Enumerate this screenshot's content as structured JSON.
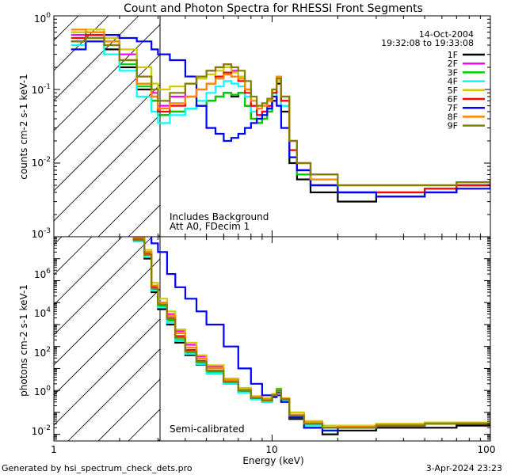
{
  "chart_data": [
    {
      "type": "line",
      "title": "Count and Photon Spectra for RHESSI Front Segments",
      "panel": "top",
      "xlabel": "",
      "ylabel": "counts cm-2 s-1 keV-1",
      "xscale": "log",
      "yscale": "log",
      "xlim": [
        1,
        100
      ],
      "ylim": [
        0.001,
        1
      ],
      "y_ticks": [
        {
          "base": "10",
          "exp": "0",
          "value": 1
        },
        {
          "base": "10",
          "exp": "-1",
          "value": 0.1
        },
        {
          "base": "10",
          "exp": "-2",
          "value": 0.01
        },
        {
          "base": "10",
          "exp": "-3",
          "value": 0.001
        }
      ],
      "date": "14-Oct-2004",
      "time_range": "19:32:08 to 19:33:08",
      "annotations": [
        "Includes Background",
        "Att A0, FDecim 1"
      ],
      "legend_location": "top-right",
      "x": [
        1.2,
        1.4,
        1.7,
        2.0,
        2.4,
        2.8,
        3.0,
        3.4,
        4.0,
        4.5,
        5.0,
        5.5,
        6.0,
        6.5,
        7.0,
        7.5,
        8.0,
        8.5,
        9.0,
        9.5,
        10.0,
        10.5,
        11.0,
        12.0,
        13.0,
        15.0,
        20.0,
        30.0,
        50.0,
        70.0,
        100.0
      ],
      "series": [
        {
          "name": "1F",
          "color": "#000000",
          "values": [
            0.45,
            0.5,
            0.35,
            0.2,
            0.1,
            0.07,
            0.045,
            0.05,
            0.055,
            0.06,
            0.07,
            0.08,
            0.09,
            0.08,
            0.09,
            0.06,
            0.04,
            0.035,
            0.04,
            0.05,
            0.07,
            0.12,
            0.05,
            0.01,
            0.006,
            0.004,
            0.003,
            0.0035,
            0.004,
            0.005,
            0.006
          ]
        },
        {
          "name": "2F",
          "color": "#ff00ff",
          "values": [
            0.55,
            0.6,
            0.5,
            0.3,
            0.15,
            0.09,
            0.06,
            0.08,
            0.12,
            0.15,
            0.18,
            0.2,
            0.22,
            0.18,
            0.15,
            0.1,
            0.06,
            0.045,
            0.05,
            0.06,
            0.09,
            0.14,
            0.07,
            0.02,
            0.01,
            0.006,
            0.004,
            0.004,
            0.0045,
            0.005,
            0.006
          ]
        },
        {
          "name": "3F",
          "color": "#00cc00",
          "values": [
            0.6,
            0.55,
            0.4,
            0.22,
            0.11,
            0.07,
            0.045,
            0.05,
            0.055,
            0.06,
            0.07,
            0.08,
            0.09,
            0.085,
            0.09,
            0.06,
            0.04,
            0.035,
            0.04,
            0.05,
            0.08,
            0.14,
            0.06,
            0.012,
            0.007,
            0.005,
            0.004,
            0.004,
            0.0045,
            0.005,
            0.006
          ]
        },
        {
          "name": "4F",
          "color": "#00ffff",
          "values": [
            0.4,
            0.45,
            0.3,
            0.18,
            0.08,
            0.05,
            0.035,
            0.045,
            0.055,
            0.07,
            0.09,
            0.11,
            0.13,
            0.12,
            0.11,
            0.08,
            0.05,
            0.04,
            0.045,
            0.055,
            0.08,
            0.13,
            0.06,
            0.015,
            0.008,
            0.005,
            0.004,
            0.004,
            0.0045,
            0.005,
            0.006
          ]
        },
        {
          "name": "5F",
          "color": "#cccc00",
          "values": [
            0.6,
            0.65,
            0.5,
            0.35,
            0.2,
            0.12,
            0.1,
            0.11,
            0.12,
            0.14,
            0.16,
            0.18,
            0.2,
            0.17,
            0.15,
            0.1,
            0.07,
            0.055,
            0.06,
            0.07,
            0.1,
            0.13,
            0.08,
            0.02,
            0.01,
            0.007,
            0.005,
            0.005,
            0.005,
            0.0055,
            0.006
          ]
        },
        {
          "name": "6F",
          "color": "#ff0000",
          "values": [
            0.5,
            0.55,
            0.45,
            0.25,
            0.12,
            0.08,
            0.05,
            0.06,
            0.08,
            0.1,
            0.12,
            0.15,
            0.17,
            0.15,
            0.13,
            0.09,
            0.06,
            0.045,
            0.05,
            0.06,
            0.09,
            0.14,
            0.07,
            0.015,
            0.008,
            0.005,
            0.004,
            0.004,
            0.0045,
            0.005,
            0.006
          ]
        },
        {
          "name": "7F",
          "color": "#0000ff",
          "values": [
            0.35,
            0.45,
            0.55,
            0.5,
            0.45,
            0.35,
            0.3,
            0.25,
            0.15,
            0.06,
            0.03,
            0.025,
            0.02,
            0.022,
            0.025,
            0.03,
            0.035,
            0.04,
            0.045,
            0.055,
            0.08,
            0.06,
            0.03,
            0.012,
            0.008,
            0.005,
            0.004,
            0.0035,
            0.004,
            0.0045,
            0.005
          ]
        },
        {
          "name": "8F",
          "color": "#ff8800",
          "values": [
            0.65,
            0.6,
            0.45,
            0.25,
            0.12,
            0.08,
            0.055,
            0.065,
            0.08,
            0.1,
            0.12,
            0.14,
            0.16,
            0.15,
            0.14,
            0.1,
            0.07,
            0.055,
            0.06,
            0.07,
            0.1,
            0.15,
            0.08,
            0.02,
            0.01,
            0.006,
            0.005,
            0.005,
            0.005,
            0.0055,
            0.006
          ]
        },
        {
          "name": "9F",
          "color": "#808000",
          "values": [
            0.45,
            0.5,
            0.4,
            0.25,
            0.15,
            0.1,
            0.07,
            0.09,
            0.12,
            0.15,
            0.18,
            0.2,
            0.22,
            0.2,
            0.18,
            0.13,
            0.08,
            0.06,
            0.065,
            0.075,
            0.1,
            0.14,
            0.08,
            0.02,
            0.01,
            0.007,
            0.005,
            0.005,
            0.005,
            0.0055,
            0.006
          ]
        }
      ]
    },
    {
      "type": "line",
      "panel": "bottom",
      "xlabel": "Energy (keV)",
      "ylabel": "photons cm-2 s-1 keV-1",
      "xscale": "log",
      "yscale": "log",
      "xlim": [
        1,
        100
      ],
      "ylim": [
        0.005,
        10000000
      ],
      "x_ticks": [
        "1",
        "10",
        "100"
      ],
      "y_ticks": [
        {
          "base": "10",
          "exp": "6",
          "value": 1000000
        },
        {
          "base": "10",
          "exp": "4",
          "value": 10000
        },
        {
          "base": "10",
          "exp": "2",
          "value": 100
        },
        {
          "base": "10",
          "exp": "0",
          "value": 1
        },
        {
          "base": "10",
          "exp": "-2",
          "value": 0.01
        }
      ],
      "annotations": [
        "Semi-calibrated"
      ],
      "x": [
        2.3,
        2.6,
        2.8,
        3.0,
        3.3,
        3.6,
        4.0,
        4.5,
        5.0,
        6.0,
        7.0,
        8.0,
        9.0,
        10.0,
        10.5,
        11.0,
        12.0,
        14.0,
        17.0,
        20.0,
        30.0,
        50.0,
        70.0,
        100.0
      ],
      "series": [
        {
          "name": "1F",
          "color": "#000000",
          "values": [
            7000000,
            1000000,
            30000,
            5000,
            1000,
            150,
            40,
            15,
            6,
            2,
            0.8,
            0.4,
            0.3,
            0.5,
            0.8,
            0.3,
            0.05,
            0.02,
            0.01,
            0.015,
            0.02,
            0.02,
            0.025,
            0.03
          ]
        },
        {
          "name": "2F",
          "color": "#ff00ff",
          "values": [
            9000000,
            2000000,
            60000,
            10000,
            3000,
            500,
            120,
            35,
            12,
            3,
            1.2,
            0.5,
            0.4,
            0.6,
            1.0,
            0.4,
            0.08,
            0.03,
            0.02,
            0.02,
            0.025,
            0.03,
            0.03,
            0.035
          ]
        },
        {
          "name": "3F",
          "color": "#00cc00",
          "values": [
            8000000,
            1500000,
            40000,
            7000,
            1500,
            200,
            50,
            18,
            7,
            2.2,
            0.9,
            0.45,
            0.35,
            0.6,
            1.2,
            0.4,
            0.07,
            0.03,
            0.02,
            0.02,
            0.025,
            0.03,
            0.03,
            0.035
          ]
        },
        {
          "name": "4F",
          "color": "#00ffff",
          "values": [
            6000000,
            1200000,
            35000,
            6000,
            1200,
            180,
            45,
            16,
            6,
            2,
            0.8,
            0.4,
            0.3,
            0.5,
            0.9,
            0.35,
            0.06,
            0.025,
            0.015,
            0.02,
            0.025,
            0.03,
            0.03,
            0.035
          ]
        },
        {
          "name": "5F",
          "color": "#cccc00",
          "values": [
            9000000,
            2500000,
            80000,
            15000,
            4000,
            600,
            150,
            40,
            14,
            3.5,
            1.3,
            0.55,
            0.45,
            0.7,
            1.1,
            0.45,
            0.1,
            0.04,
            0.025,
            0.025,
            0.03,
            0.035,
            0.035,
            0.04
          ]
        },
        {
          "name": "6F",
          "color": "#ff0000",
          "values": [
            8000000,
            1800000,
            50000,
            8000,
            2000,
            300,
            70,
            22,
            8,
            2.5,
            1.0,
            0.45,
            0.35,
            0.6,
            1.0,
            0.4,
            0.07,
            0.03,
            0.02,
            0.02,
            0.025,
            0.03,
            0.03,
            0.035
          ]
        },
        {
          "name": "7F",
          "color": "#0000ff",
          "values": [
            40000000,
            15000000,
            5000000,
            2000000,
            200000,
            50000,
            15000,
            4000,
            1000,
            100,
            10,
            2,
            0.6,
            0.5,
            0.6,
            0.3,
            0.06,
            0.02,
            0.015,
            0.02,
            0.025,
            0.03,
            0.03,
            0.035
          ]
        },
        {
          "name": "8F",
          "color": "#ff8800",
          "values": [
            9000000,
            2000000,
            60000,
            10000,
            2500,
            400,
            90,
            28,
            10,
            3,
            1.1,
            0.5,
            0.4,
            0.65,
            1.1,
            0.42,
            0.08,
            0.035,
            0.02,
            0.022,
            0.028,
            0.032,
            0.033,
            0.038
          ]
        },
        {
          "name": "9F",
          "color": "#808000",
          "values": [
            7000000,
            1500000,
            45000,
            8000,
            1800,
            250,
            60,
            20,
            8,
            2.5,
            1.0,
            0.45,
            0.35,
            0.6,
            1.0,
            0.4,
            0.07,
            0.03,
            0.02,
            0.02,
            0.025,
            0.03,
            0.03,
            0.035
          ]
        }
      ]
    }
  ],
  "footer": {
    "generated_by": "Generated by hsi_spectrum_check_dets.pro",
    "date": "3-Apr-2024 23:23"
  }
}
